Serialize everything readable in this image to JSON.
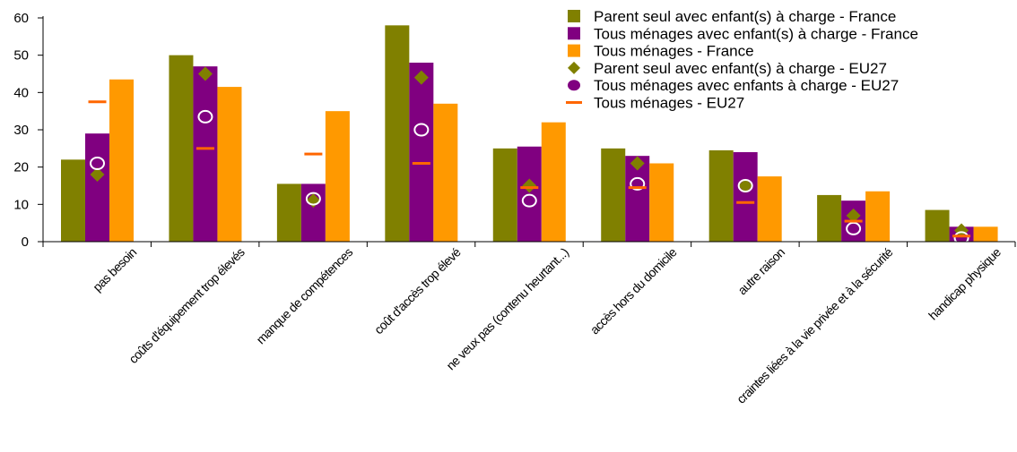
{
  "chart_data": {
    "type": "bar",
    "categories": [
      "pas besoin",
      "coûts d'équipement trop élevés",
      "manque de compétences",
      "coût d'accès trop élevé",
      "ne veux pas (contenu heurtant...)",
      "accès hors du domicile",
      "autre raison",
      "craintes liées à la vie privée et à la sécurité",
      "handicap physique"
    ],
    "series": [
      {
        "name": "Parent seul avec enfant(s) à charge - France",
        "kind": "bar",
        "color": "#808000",
        "values": [
          22,
          50,
          15.5,
          58,
          25,
          25,
          24.5,
          12.5,
          8.5
        ]
      },
      {
        "name": "Tous ménages avec enfant(s) à charge - France",
        "kind": "bar",
        "color": "#800080",
        "values": [
          29,
          47,
          15.5,
          48,
          25.5,
          23,
          24,
          11,
          4
        ]
      },
      {
        "name": "Tous ménages - France",
        "kind": "bar",
        "color": "#FF9900",
        "values": [
          43.5,
          41.5,
          35,
          37,
          32,
          21,
          17.5,
          13.5,
          4
        ]
      },
      {
        "name": "Parent seul avec enfant(s) à charge - EU27",
        "kind": "diamond",
        "color": "#808000",
        "values": [
          18,
          45,
          11,
          44,
          15,
          21,
          15,
          7,
          3
        ]
      },
      {
        "name": "Tous ménages avec enfants à charge - EU27",
        "kind": "circle",
        "color": "#800080",
        "values": [
          21,
          33.5,
          11.5,
          30,
          11,
          15.5,
          15,
          3.5,
          1
        ]
      },
      {
        "name": "Tous ménages - EU27",
        "kind": "dash",
        "color": "#FF6600",
        "values": [
          37.5,
          25,
          23.5,
          21,
          14.5,
          14.5,
          10.5,
          5.5,
          1.5
        ]
      }
    ],
    "ylim": [
      0,
      60
    ],
    "yticks": [
      "0",
      "10",
      "20",
      "30",
      "40",
      "50",
      "60"
    ],
    "legend_position": "top-right",
    "grid": false
  }
}
